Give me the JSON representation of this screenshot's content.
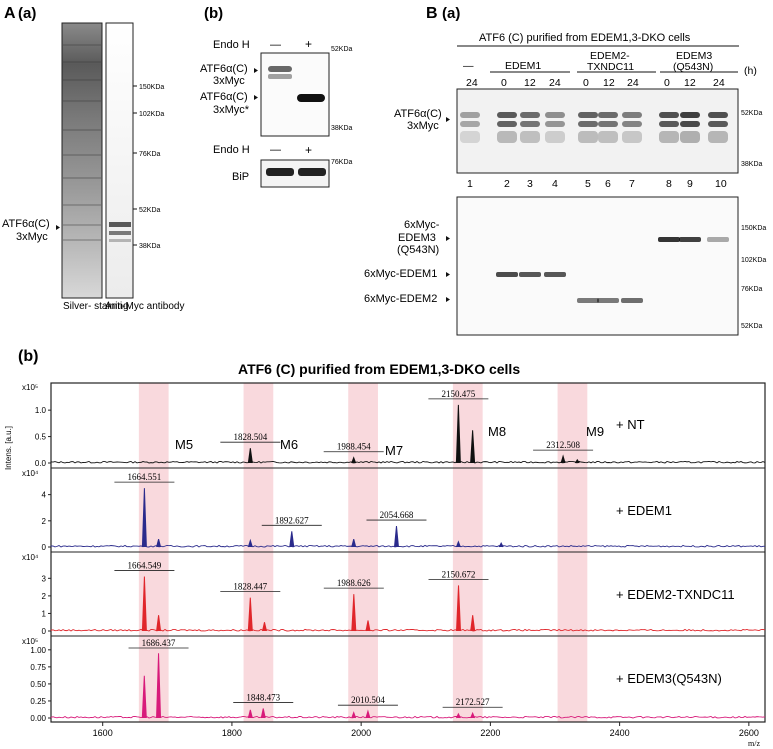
{
  "figure": {
    "panel_A": {
      "letter": "A",
      "sub": "(a)",
      "lane_labels": [
        "Silver-\nstaining",
        "Anti-Myc\nantibody"
      ],
      "band_label": [
        "ATF6α(C)",
        "3xMyc"
      ],
      "markers": [
        "150KDa",
        "102KDa",
        "76KDa",
        "52KDa",
        "38KDa"
      ]
    },
    "panel_Ab": {
      "sub": "(b)",
      "endo_label": "Endo H",
      "endo_states": [
        "—",
        "+"
      ],
      "band1": [
        "ATF6α(C)",
        "3xMyc"
      ],
      "band2": [
        "ATF6α(C)",
        "3xMyc*"
      ],
      "markers_top": [
        "52KDa",
        "38KDa"
      ],
      "endo_label2": "Endo H",
      "endo_states2": [
        "—",
        "+"
      ],
      "marker_bip": "76KDa",
      "bip_label": "BiP"
    },
    "panel_B": {
      "letter": "B",
      "sub": "(a)",
      "title": "ATF6   (C) purified from EDEM1,3-DKO cells",
      "groups": [
        {
          "name": "—",
          "times": [
            "24"
          ]
        },
        {
          "name": "EDEM1",
          "times": [
            "0",
            "12",
            "24"
          ]
        },
        {
          "name": "EDEM2-\nTXNDC11",
          "times": [
            "0",
            "12",
            "24"
          ]
        },
        {
          "name": "EDEM3\n(Q543N)",
          "times": [
            "0",
            "12",
            "24"
          ]
        }
      ],
      "hours": "(h)",
      "lane_numbers": [
        "1",
        "2",
        "3",
        "4",
        "5",
        "6",
        "7",
        "8",
        "9",
        "10"
      ],
      "top_band_label": [
        "ATF6α(C)",
        "3xMyc"
      ],
      "top_markers": [
        "52KDa",
        "38KDa"
      ],
      "bottom_labels": [
        [
          "6xMyc-",
          "EDEM3",
          "(Q543N)"
        ],
        [
          "6xMyc-EDEM1"
        ],
        [
          "6xMyc-EDEM2"
        ]
      ],
      "bottom_markers": [
        "150KDa",
        "102KDa",
        "76KDa",
        "52KDa"
      ]
    },
    "panel_b": {
      "sub": "(b)",
      "title": "ATF6   (C) purified from EDEM1,3-DKO cells",
      "ylabel": "Intens. [a.u.]",
      "xlabel": "m/z",
      "x_ticks": [
        "1600",
        "1800",
        "2000",
        "2200",
        "2400",
        "2600"
      ],
      "glycan_labels": [
        "M5",
        "M6",
        "M7",
        "M8",
        "M9"
      ],
      "traces": [
        {
          "label": "+ NT",
          "color": "#111111",
          "scale": "x10⁵",
          "yticks": [
            "0.0",
            "0.5",
            "1.0"
          ],
          "peaks": [
            "1828.504",
            "1988.454",
            "2150.475",
            "2312.508"
          ]
        },
        {
          "label": "+ EDEM1",
          "color": "#2b2b8c",
          "scale": "x10⁴",
          "yticks": [
            "0",
            "2",
            "4"
          ],
          "peaks": [
            "1664.551",
            "1892.627",
            "2054.668"
          ]
        },
        {
          "label": "+ EDEM2-TXNDC11",
          "color": "#e0262b",
          "scale": "x10⁴",
          "yticks": [
            "0",
            "1",
            "2",
            "3"
          ],
          "peaks": [
            "1664.549",
            "1828.447",
            "1988.626",
            "2150.672"
          ]
        },
        {
          "label": "+ EDEM3(Q543N)",
          "color": "#d81b7a",
          "scale": "x10⁵",
          "yticks": [
            "0.00",
            "0.25",
            "0.50",
            "0.75",
            "1.00"
          ],
          "peaks": [
            "1686.437",
            "1848.473",
            "2010.504",
            "2172.527"
          ]
        }
      ]
    }
  },
  "chart_data": {
    "type": "line",
    "title": "ATF6   (C) purified from EDEM1,3-DKO cells",
    "xlabel": "m/z",
    "ylabel": "Intens. [a.u.]",
    "xlim": [
      1520,
      2625
    ],
    "highlight_regions_mz": [
      [
        1656,
        1702
      ],
      [
        1818,
        1864
      ],
      [
        1980,
        2026
      ],
      [
        2142,
        2188
      ],
      [
        2304,
        2350
      ]
    ],
    "series": [
      {
        "name": "+ NT",
        "ylim": [
          0,
          1.4
        ],
        "unit": "x10^5",
        "peaks": [
          {
            "mz": 1828.504,
            "y": 0.28
          },
          {
            "mz": 1988.454,
            "y": 0.1
          },
          {
            "mz": 2150.475,
            "y": 1.1
          },
          {
            "mz": 2172.5,
            "y": 0.62
          },
          {
            "mz": 2312.508,
            "y": 0.13
          },
          {
            "mz": 2334.5,
            "y": 0.06
          }
        ]
      },
      {
        "name": "+ EDEM1",
        "ylim": [
          0,
          5.5
        ],
        "unit": "x10^4",
        "peaks": [
          {
            "mz": 1664.551,
            "y": 4.5
          },
          {
            "mz": 1686.5,
            "y": 0.6
          },
          {
            "mz": 1828.5,
            "y": 0.5
          },
          {
            "mz": 1892.627,
            "y": 1.2
          },
          {
            "mz": 1988.5,
            "y": 0.6
          },
          {
            "mz": 2054.668,
            "y": 1.6
          },
          {
            "mz": 2150.5,
            "y": 0.4
          },
          {
            "mz": 2216.7,
            "y": 0.3
          }
        ]
      },
      {
        "name": "+ EDEM2-TXNDC11",
        "ylim": [
          0,
          4.1
        ],
        "unit": "x10^4",
        "peaks": [
          {
            "mz": 1664.549,
            "y": 3.1
          },
          {
            "mz": 1686.5,
            "y": 0.9
          },
          {
            "mz": 1828.447,
            "y": 1.9
          },
          {
            "mz": 1850.4,
            "y": 0.5
          },
          {
            "mz": 1988.626,
            "y": 2.1
          },
          {
            "mz": 2010.6,
            "y": 0.6
          },
          {
            "mz": 2150.672,
            "y": 2.6
          },
          {
            "mz": 2172.6,
            "y": 0.9
          }
        ]
      },
      {
        "name": "+ EDEM3(Q543N)",
        "ylim": [
          0,
          1.1
        ],
        "unit": "x10^5",
        "peaks": [
          {
            "mz": 1664.4,
            "y": 0.62
          },
          {
            "mz": 1686.437,
            "y": 0.95
          },
          {
            "mz": 1828.5,
            "y": 0.12
          },
          {
            "mz": 1848.473,
            "y": 0.14
          },
          {
            "mz": 1988.5,
            "y": 0.08
          },
          {
            "mz": 2010.504,
            "y": 0.1
          },
          {
            "mz": 2150.5,
            "y": 0.06
          },
          {
            "mz": 2172.527,
            "y": 0.07
          }
        ]
      }
    ]
  }
}
